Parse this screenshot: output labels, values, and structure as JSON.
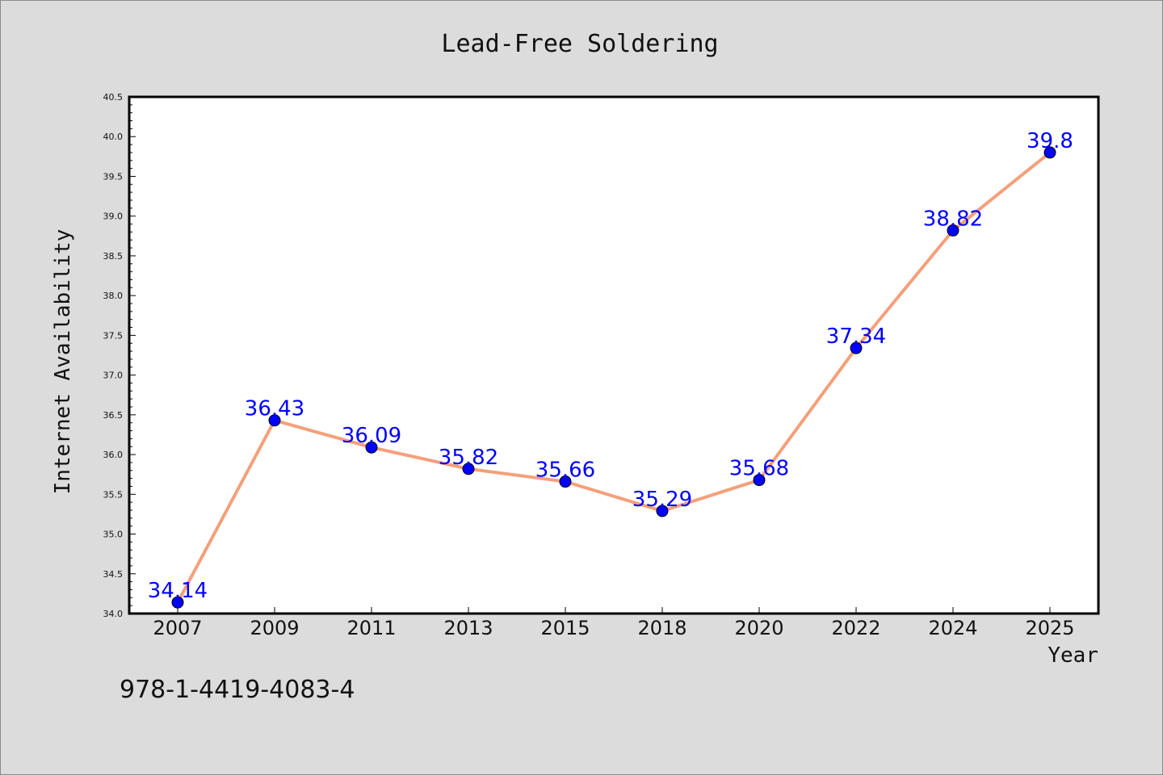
{
  "chart_data": {
    "type": "line",
    "title": "Lead-Free Soldering",
    "xlabel": "Year",
    "ylabel": "Internet Availability",
    "categories": [
      "2007",
      "2009",
      "2011",
      "2013",
      "2015",
      "2018",
      "2020",
      "2022",
      "2024",
      "2025"
    ],
    "series": [
      {
        "values": [
          34.14,
          36.43,
          36.09,
          35.82,
          35.66,
          35.29,
          35.68,
          37.34,
          38.82,
          39.8
        ],
        "data_labels": [
          "34.14",
          "36.43",
          "36.09",
          "35.82",
          "35.66",
          "35.29",
          "35.68",
          "37.34",
          "38.82",
          "39.8"
        ],
        "line_color": "#f4a07a",
        "marker_color": "#0000ff"
      }
    ],
    "ylim": [
      34.0,
      40.5
    ],
    "yticks": [
      "34.0",
      "34.5",
      "35.0",
      "35.5",
      "36.0",
      "36.5",
      "37.0",
      "37.5",
      "38.0",
      "38.5",
      "39.0",
      "39.5",
      "40.0",
      "40.5"
    ],
    "grid": false,
    "legend": "none"
  },
  "annotation": "978-1-4419-4083-4",
  "colors": {
    "background": "#dcdcdc",
    "plot_background": "#ffffff",
    "line": "#f4a07a",
    "marker": "#0000ff",
    "data_label": "#0000ff"
  }
}
